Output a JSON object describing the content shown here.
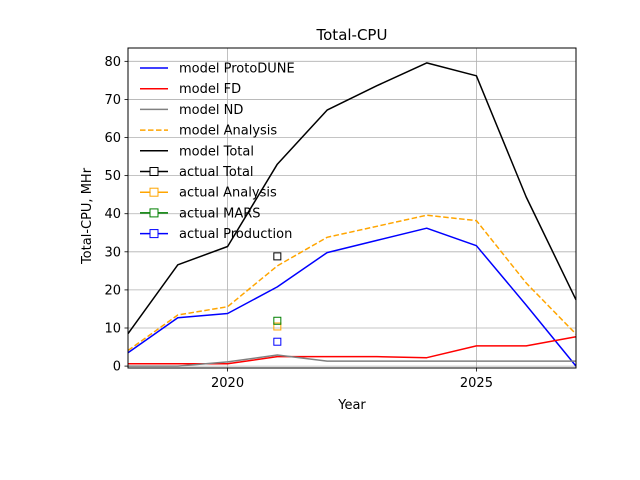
{
  "chart_data": {
    "type": "line",
    "title": "Total-CPU",
    "xlabel": "Year",
    "ylabel": "Total-CPU, MHr",
    "xlim": [
      2018,
      2027
    ],
    "ylim": [
      -0.5,
      83.5
    ],
    "xticks": [
      2020,
      2025
    ],
    "yticks": [
      0,
      10,
      20,
      30,
      40,
      50,
      60,
      70,
      80
    ],
    "grid": true,
    "legend_position": "top-left",
    "series": [
      {
        "name": "model ProtoDUNE",
        "style": "solid",
        "color": "#0000ff",
        "x": [
          2018,
          2019,
          2020,
          2021,
          2022,
          2023,
          2024,
          2025,
          2026,
          2027
        ],
        "y": [
          3.5,
          12.7,
          13.8,
          20.8,
          29.8,
          33.0,
          36.2,
          31.6,
          16.0,
          0.0
        ]
      },
      {
        "name": "model FD",
        "style": "solid",
        "color": "#ff0000",
        "x": [
          2018,
          2019,
          2020,
          2021,
          2022,
          2023,
          2024,
          2025,
          2026,
          2027
        ],
        "y": [
          0.6,
          0.6,
          0.6,
          2.5,
          2.5,
          2.5,
          2.2,
          5.3,
          5.3,
          7.7
        ]
      },
      {
        "name": "model ND",
        "style": "solid",
        "color": "#808080",
        "x": [
          2018,
          2019,
          2020,
          2021,
          2022,
          2023,
          2024,
          2025,
          2026,
          2027
        ],
        "y": [
          0.0,
          0.0,
          1.1,
          2.9,
          1.3,
          1.3,
          1.3,
          1.3,
          1.3,
          1.3
        ]
      },
      {
        "name": "model Analysis",
        "style": "dashed",
        "color": "#ffa500",
        "x": [
          2018,
          2019,
          2020,
          2021,
          2022,
          2023,
          2024,
          2025,
          2026,
          2027
        ],
        "y": [
          4.1,
          13.4,
          15.6,
          26.3,
          33.8,
          36.7,
          39.6,
          38.2,
          21.8,
          8.4
        ]
      },
      {
        "name": "model Total",
        "style": "solid",
        "color": "#000000",
        "x": [
          2018,
          2019,
          2020,
          2021,
          2022,
          2023,
          2024,
          2025,
          2026,
          2027
        ],
        "y": [
          8.5,
          26.6,
          31.4,
          53.0,
          67.2,
          73.6,
          79.6,
          76.2,
          44.4,
          17.4
        ]
      },
      {
        "name": "actual Total",
        "style": "marker",
        "color": "#000000",
        "x": [
          2021
        ],
        "y": [
          28.8
        ]
      },
      {
        "name": "actual Analysis",
        "style": "marker",
        "color": "#ffa500",
        "x": [
          2021
        ],
        "y": [
          10.4
        ]
      },
      {
        "name": "actual MARS",
        "style": "marker",
        "color": "#008000",
        "x": [
          2021
        ],
        "y": [
          11.9
        ]
      },
      {
        "name": "actual Production",
        "style": "marker",
        "color": "#0000ff",
        "x": [
          2021
        ],
        "y": [
          6.4
        ]
      }
    ]
  }
}
